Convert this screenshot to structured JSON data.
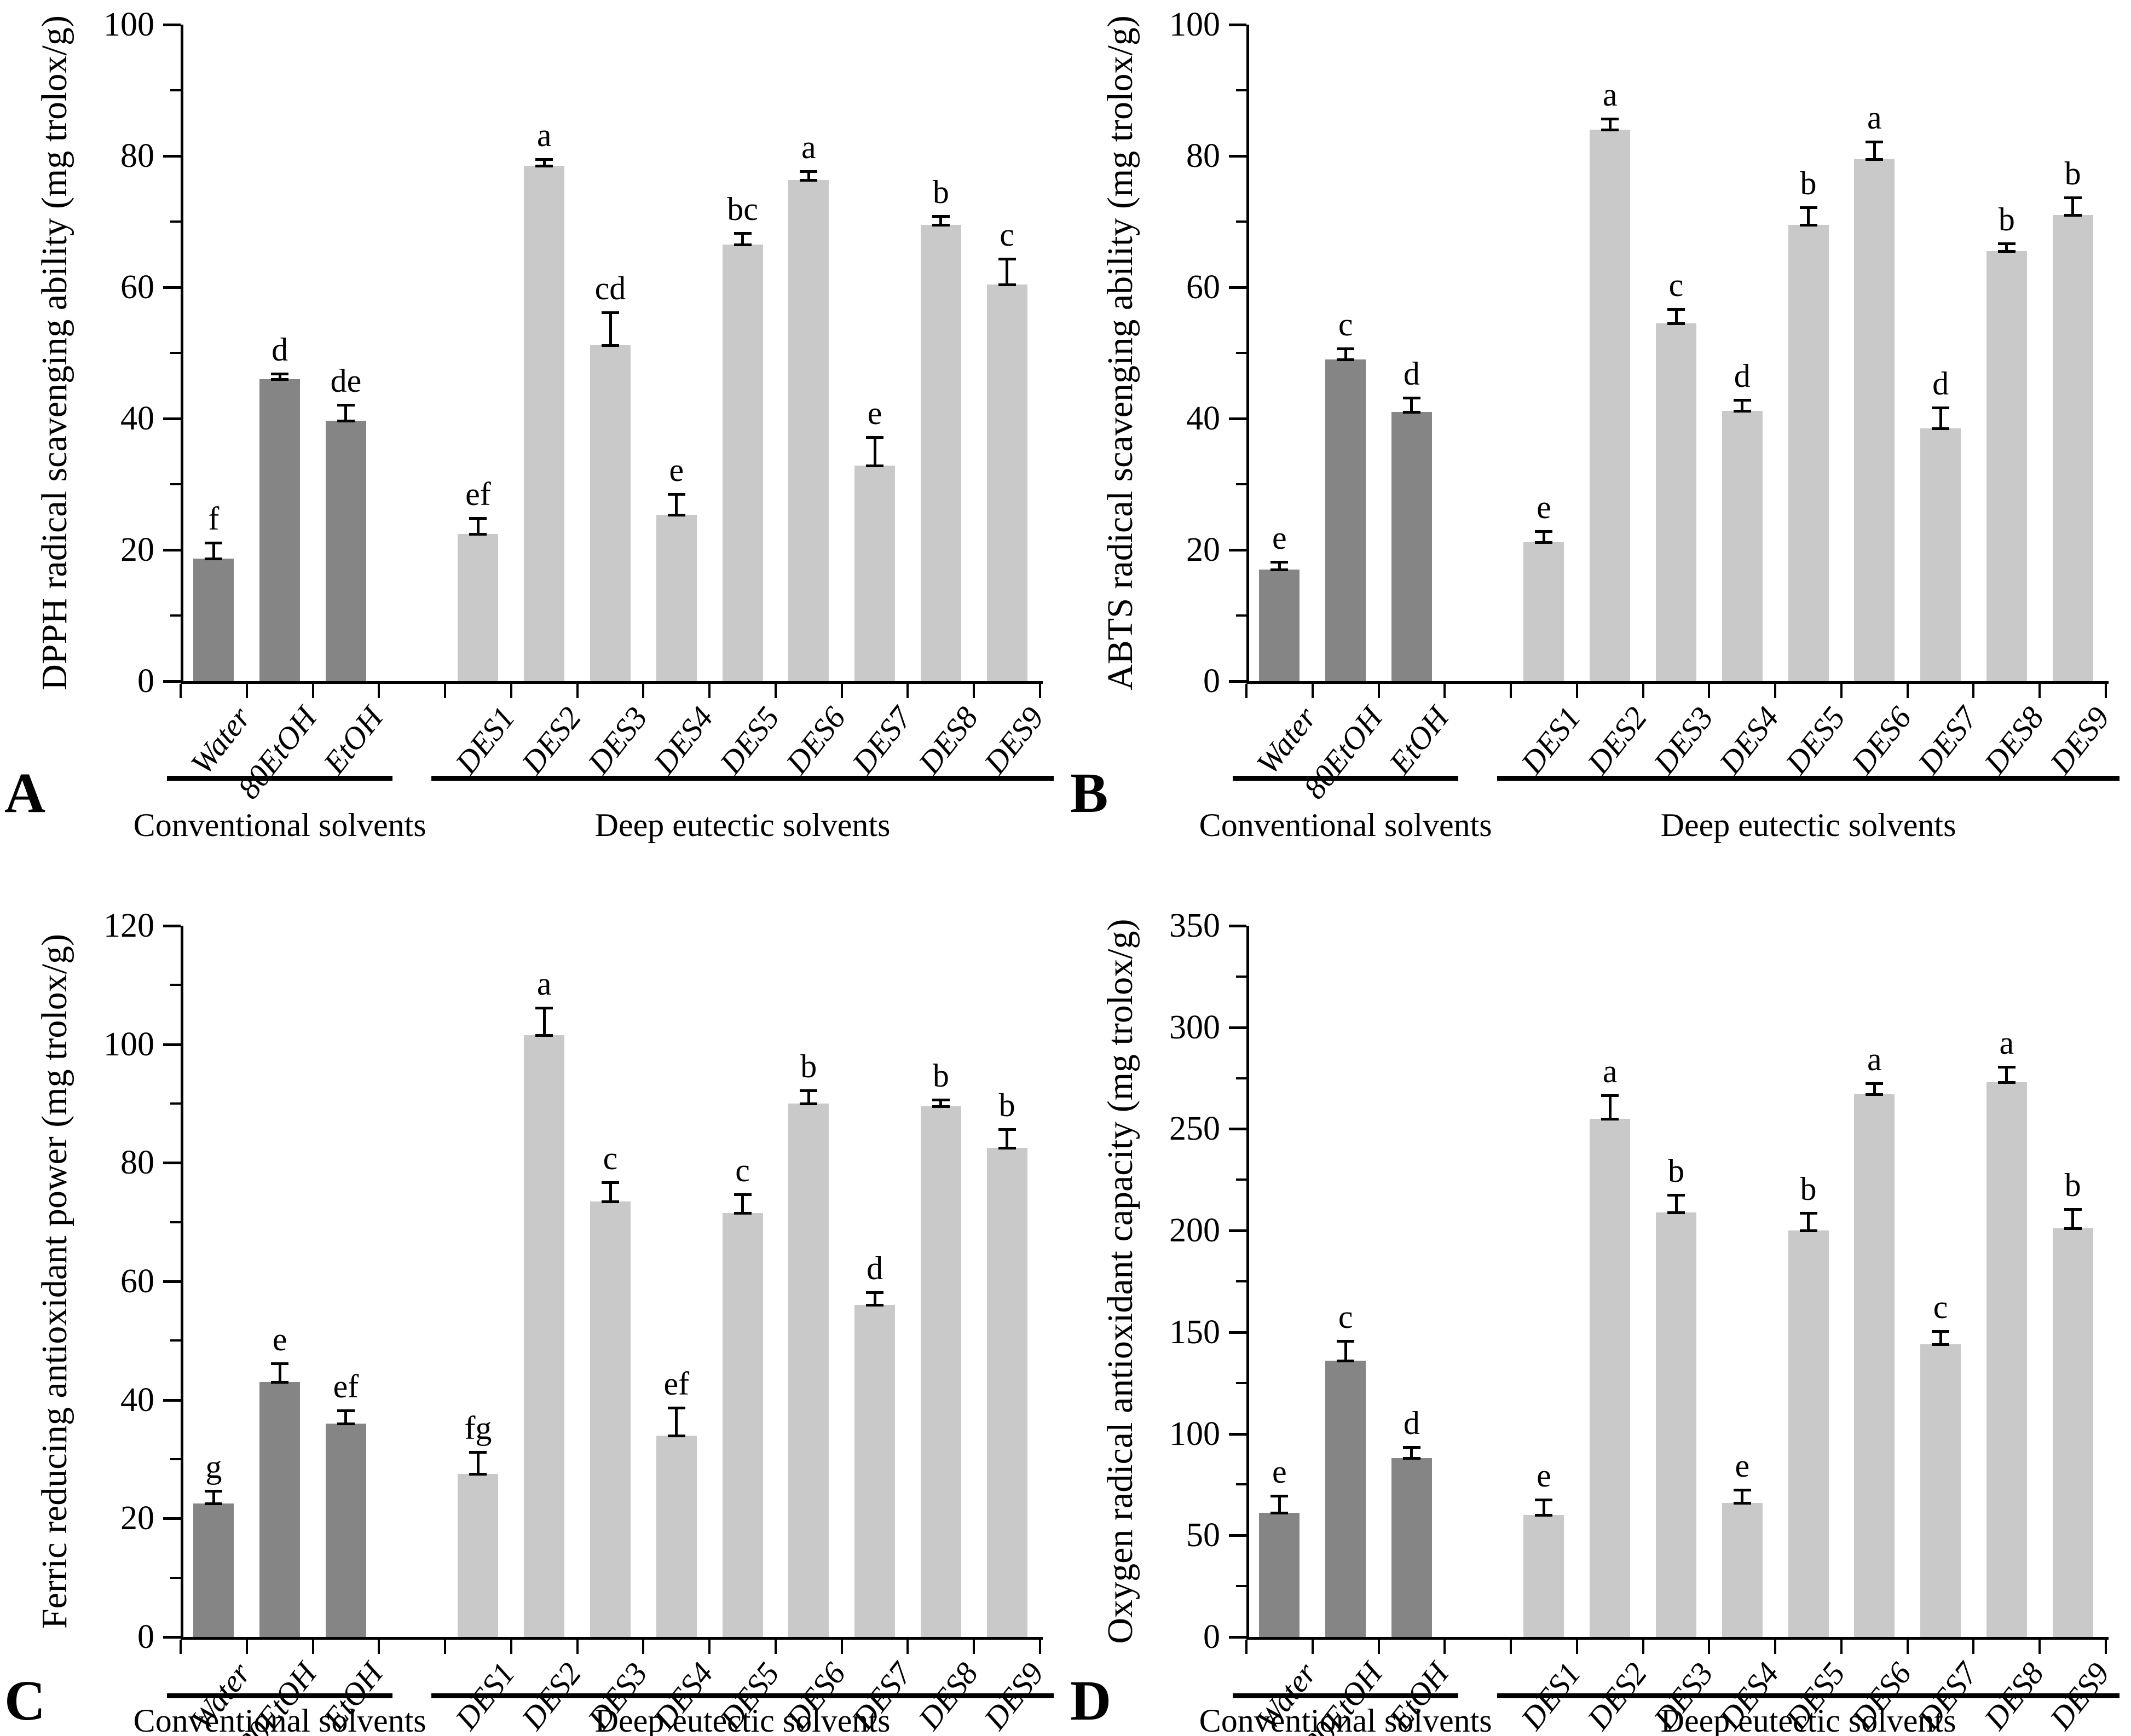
{
  "figure": {
    "background": "#ffffff",
    "panel_letters": [
      "A",
      "B",
      "C",
      "D"
    ]
  },
  "styles": {
    "conventional_bar_color": "#858585",
    "des_bar_color": "#c9c9c9",
    "axis_color": "#000000",
    "error_bar_color": "#000000"
  },
  "chart_data": [
    {
      "panel_letter": "A",
      "type": "bar",
      "ylabel": "DPPH radical scavenging ability  (mg trolox/g)",
      "xlabel": "",
      "ylim": [
        0,
        100
      ],
      "yticks": [
        0,
        20,
        40,
        60,
        80,
        100
      ],
      "minor_step": 10,
      "grid": false,
      "categories": [
        "Water",
        "80EtOH",
        "EtOH",
        "DES1",
        "DES2",
        "DES3",
        "DES4",
        "DES5",
        "DES6",
        "DES7",
        "DES8",
        "DES9"
      ],
      "values": [
        18.7,
        46.0,
        39.7,
        22.4,
        78.5,
        51.2,
        25.3,
        66.5,
        76.3,
        32.8,
        69.5,
        60.4
      ],
      "errors": [
        2.2,
        0.7,
        2.2,
        2.3,
        0.8,
        4.8,
        3.0,
        1.6,
        1.2,
        4.2,
        1.2,
        3.8
      ],
      "sig_letters": [
        "f",
        "d",
        "de",
        "ef",
        "a",
        "cd",
        "e",
        "bc",
        "a",
        "e",
        "b",
        "c"
      ],
      "groups": [
        {
          "label": "Conventional solvents",
          "span": [
            0,
            2
          ]
        },
        {
          "label": "Deep eutectic solvents",
          "span": [
            3,
            11
          ]
        }
      ]
    },
    {
      "panel_letter": "B",
      "type": "bar",
      "ylabel": "ABTS radical scavenging ability  (mg trolox/g)",
      "xlabel": "",
      "ylim": [
        0,
        100
      ],
      "yticks": [
        0,
        20,
        40,
        60,
        80,
        100
      ],
      "minor_step": 10,
      "grid": false,
      "categories": [
        "Water",
        "80EtOH",
        "EtOH",
        "DES1",
        "DES2",
        "DES3",
        "DES4",
        "DES5",
        "DES6",
        "DES7",
        "DES8",
        "DES9"
      ],
      "values": [
        17.0,
        49.0,
        41.0,
        21.2,
        84.0,
        54.5,
        41.2,
        69.5,
        79.5,
        38.5,
        65.5,
        71.0
      ],
      "errors": [
        1.0,
        1.5,
        2.0,
        1.5,
        1.5,
        2.0,
        1.5,
        2.5,
        2.5,
        3.0,
        1.0,
        2.5
      ],
      "sig_letters": [
        "e",
        "c",
        "d",
        "e",
        "a",
        "c",
        "d",
        "b",
        "a",
        "d",
        "b",
        "b"
      ],
      "groups": [
        {
          "label": "Conventional solvents",
          "span": [
            0,
            2
          ]
        },
        {
          "label": "Deep eutectic solvents",
          "span": [
            3,
            11
          ]
        }
      ]
    },
    {
      "panel_letter": "C",
      "type": "bar",
      "ylabel": "Ferric reducing antioxidant power (mg trolox/g)",
      "xlabel": "",
      "ylim": [
        0,
        120
      ],
      "yticks": [
        0,
        20,
        40,
        60,
        80,
        100,
        120
      ],
      "minor_step": 10,
      "grid": false,
      "categories": [
        "Water",
        "80EtOH",
        "EtOH",
        "DES1",
        "DES2",
        "DES3",
        "DES4",
        "DES5",
        "DES6",
        "DES7",
        "DES8",
        "DES9"
      ],
      "values": [
        22.5,
        43.0,
        36.0,
        27.5,
        101.5,
        73.5,
        34.0,
        71.5,
        90.0,
        56.0,
        89.5,
        82.5
      ],
      "errors": [
        2.0,
        3.0,
        2.0,
        3.5,
        4.5,
        3.0,
        4.5,
        3.0,
        2.0,
        2.0,
        1.0,
        3.0
      ],
      "sig_letters": [
        "g",
        "e",
        "ef",
        "fg",
        "a",
        "c",
        "ef",
        "c",
        "b",
        "d",
        "b",
        "b"
      ],
      "groups": [
        {
          "label": "Conventional solvents",
          "span": [
            0,
            2
          ]
        },
        {
          "label": "Deep eutectic solvents",
          "span": [
            3,
            11
          ]
        }
      ]
    },
    {
      "panel_letter": "D",
      "type": "bar",
      "ylabel": "Oxygen radical antioxidant capacity (mg trolox/g)",
      "xlabel": "",
      "ylim": [
        0,
        350
      ],
      "yticks": [
        0,
        50,
        100,
        150,
        200,
        250,
        300,
        350
      ],
      "minor_step": 25,
      "grid": false,
      "categories": [
        "Water",
        "80EtOH",
        "EtOH",
        "DES1",
        "DES2",
        "DES3",
        "DES4",
        "DES5",
        "DES6",
        "DES7",
        "DES8",
        "DES9"
      ],
      "values": [
        61,
        136,
        88,
        60,
        255,
        209,
        66,
        200,
        267,
        144,
        273,
        201
      ],
      "errors": [
        8,
        9,
        5,
        7,
        11,
        8,
        6,
        8,
        5,
        6,
        7,
        9
      ],
      "sig_letters": [
        "e",
        "c",
        "d",
        "e",
        "a",
        "b",
        "e",
        "b",
        "a",
        "c",
        "a",
        "b"
      ],
      "groups": [
        {
          "label": "Conventional solvents",
          "span": [
            0,
            2
          ]
        },
        {
          "label": "Deep eutectic solvents",
          "span": [
            3,
            11
          ]
        }
      ]
    }
  ]
}
